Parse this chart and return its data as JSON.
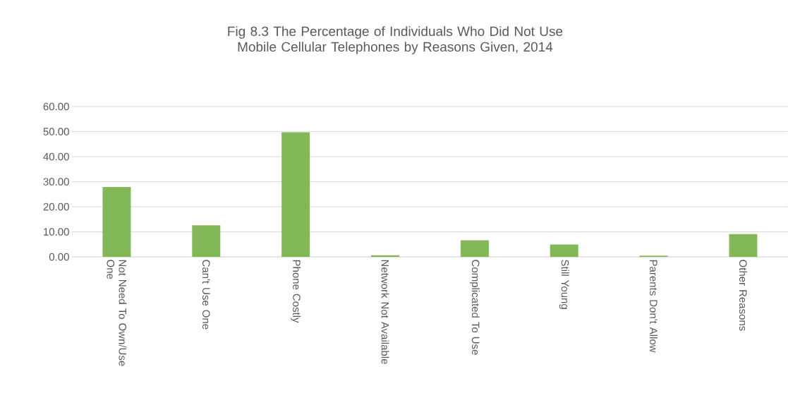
{
  "chart_data": {
    "type": "bar",
    "title": "Fig 8.3 The Percentage of Individuals Who Did Not Use Mobile Cellular Telephones by Reasons Given, 2014",
    "categories": [
      "Not Need To Own/Use One",
      "Can't Use One",
      "Phone Costly",
      "Network Not Available",
      "Complicated To Use",
      "Still Young",
      "Parents Don't Allow",
      "Other Reasons"
    ],
    "values": [
      27.9,
      12.6,
      49.7,
      0.6,
      6.6,
      4.9,
      0.5,
      9.1
    ],
    "color": "#82b858",
    "ylim": [
      0,
      60
    ],
    "yticks": [
      {
        "value": 0,
        "label": "0.00"
      },
      {
        "value": 10,
        "label": "10.00"
      },
      {
        "value": 20,
        "label": "20.00"
      },
      {
        "value": 30,
        "label": "30.00"
      },
      {
        "value": 40,
        "label": "40.00"
      },
      {
        "value": 50,
        "label": "50.00"
      },
      {
        "value": 60,
        "label": "60.00"
      }
    ],
    "grid": "y"
  }
}
